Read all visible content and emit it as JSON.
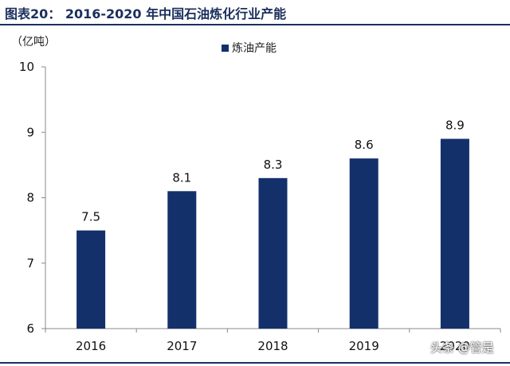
{
  "title": "图表20：  2016-2020 年中国石油炼化行业产能",
  "unit_label": "（亿吨）",
  "watermark": "头条 @管是",
  "colors": {
    "bar": "#13306b",
    "title": "#1b2f5c",
    "axis": "#888888"
  },
  "chart_data": {
    "type": "bar",
    "title": "2016-2020 年中国石油炼化行业产能",
    "ylabel": "（亿吨）",
    "xlabel": "",
    "categories": [
      "2016",
      "2017",
      "2018",
      "2019",
      "2020"
    ],
    "series": [
      {
        "name": "炼油产能",
        "values": [
          7.5,
          8.1,
          8.3,
          8.6,
          8.9
        ]
      }
    ],
    "data_labels": [
      "7.5",
      "8.1",
      "8.3",
      "8.6",
      "8.9"
    ],
    "ylim": [
      6,
      10
    ],
    "yticks": [
      6,
      7,
      8,
      9,
      10
    ],
    "grid": false,
    "legend_position": "top-center"
  }
}
